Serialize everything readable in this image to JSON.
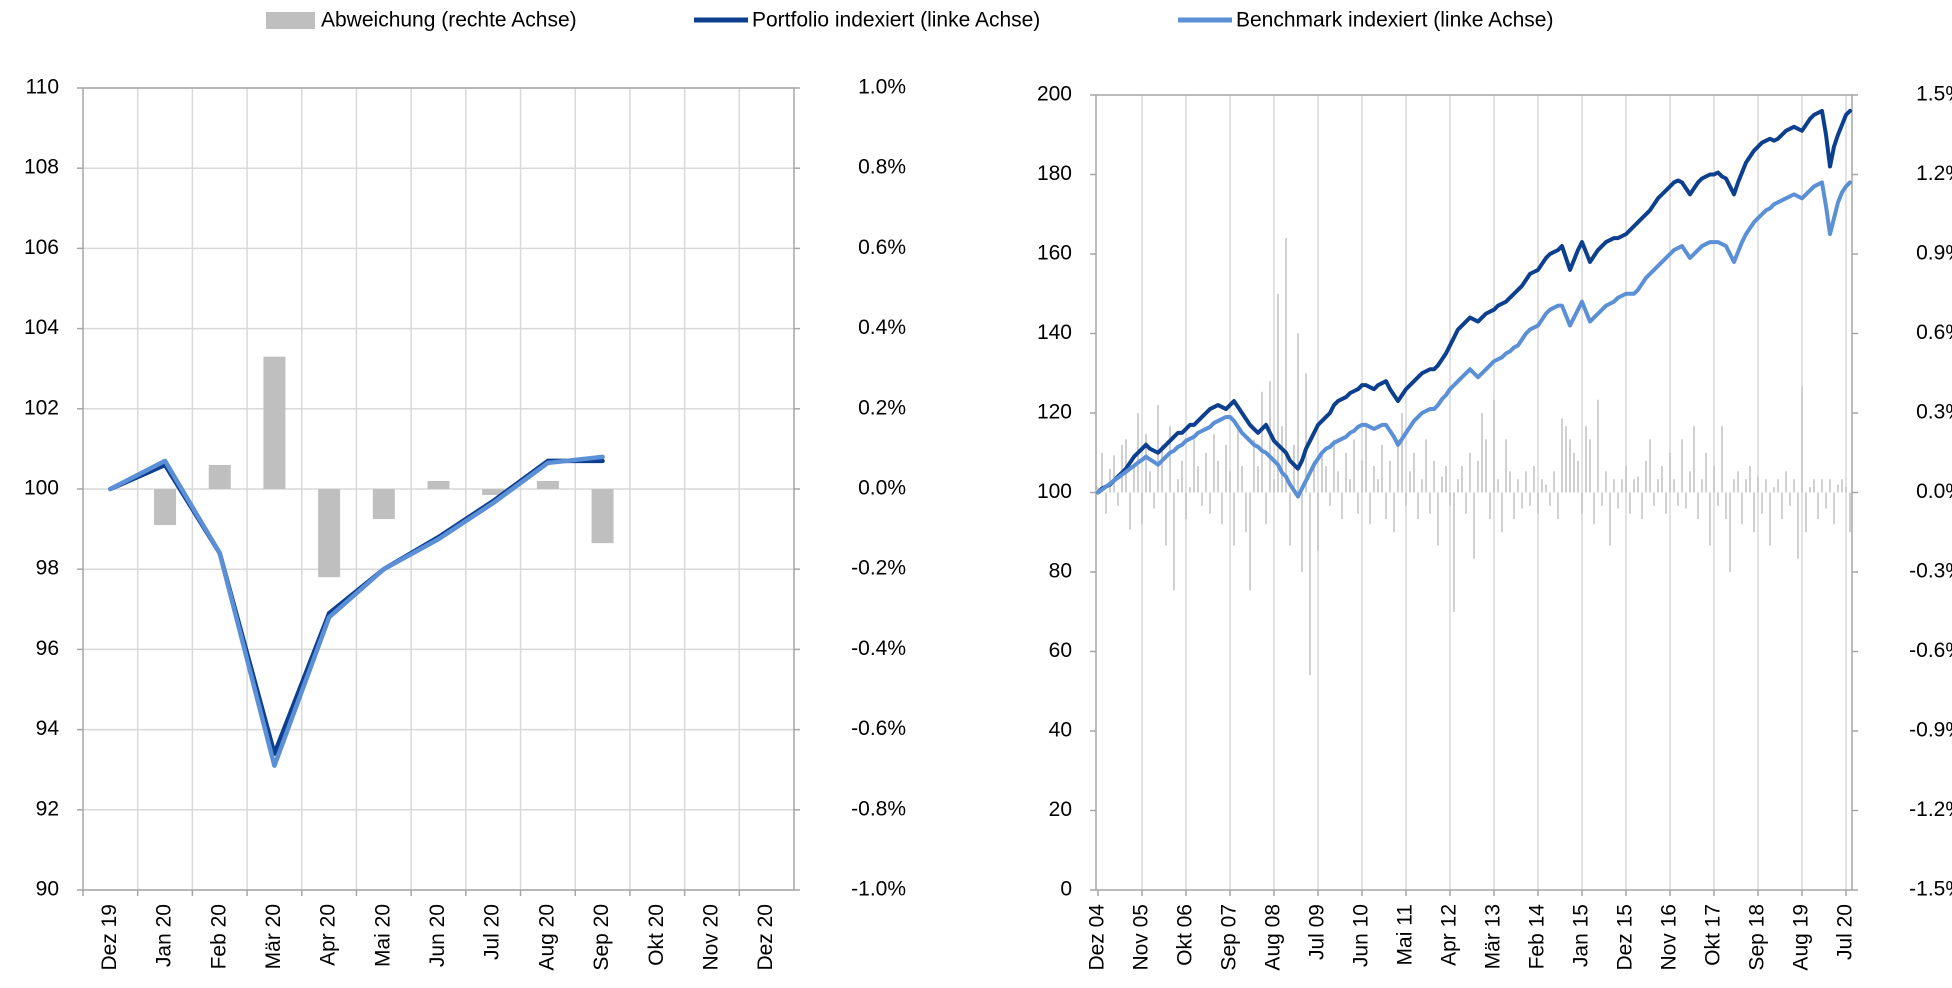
{
  "chart_data": [
    {
      "type": "line",
      "legend": "top",
      "categories": [
        "Dez 19",
        "Jan 20",
        "Feb 20",
        "Mär 20",
        "Apr 20",
        "Mai 20",
        "Jun 20",
        "Jul 20",
        "Aug 20",
        "Sep 20",
        "Okt 20",
        "Nov 20",
        "Dez 20"
      ],
      "series": [
        {
          "name": "Abweichung (rechte Achse)",
          "color": "#bfbfbf",
          "type": "bar",
          "axis": "y2",
          "values": [
            null,
            -0.09,
            0.06,
            0.33,
            -0.22,
            -0.075,
            0.02,
            -0.015,
            0.02,
            -0.135,
            null,
            null,
            null
          ]
        },
        {
          "name": "Portfolio indexiert (linke Achse)",
          "color": "#0d3f8f",
          "values": [
            100,
            100.6,
            98.4,
            93.4,
            96.9,
            98.0,
            98.8,
            99.7,
            100.7,
            100.7,
            null,
            null,
            null
          ]
        },
        {
          "name": "Benchmark indexiert (linke Achse)",
          "color": "#5b8fd6",
          "values": [
            100,
            100.7,
            98.4,
            93.1,
            96.8,
            98.0,
            98.75,
            99.65,
            100.65,
            100.8,
            null,
            null,
            null
          ]
        }
      ],
      "ylim": [
        90,
        110
      ],
      "yticks": [
        90,
        92,
        94,
        96,
        98,
        100,
        102,
        104,
        106,
        108,
        110
      ],
      "y2lim": [
        -1.0,
        1.0
      ],
      "y2ticks": [
        {
          "value": -1.0,
          "label": "-1.0%"
        },
        {
          "value": -0.8,
          "label": "-0.8%"
        },
        {
          "value": -0.6,
          "label": "-0.6%"
        },
        {
          "value": -0.4,
          "label": "-0.4%"
        },
        {
          "value": -0.2,
          "label": "-0.2%"
        },
        {
          "value": 0,
          "label": "0.0%"
        },
        {
          "value": 0.2,
          "label": "0.2%"
        },
        {
          "value": 0.4,
          "label": "0.4%"
        },
        {
          "value": 0.6,
          "label": "0.6%"
        },
        {
          "value": 0.8,
          "label": "0.8%"
        },
        {
          "value": 1.0,
          "label": "1.0%"
        }
      ],
      "grid_x": true,
      "grid_y": true
    },
    {
      "type": "line",
      "categories": [
        "Dez 04",
        null,
        null,
        null,
        null,
        null,
        null,
        null,
        null,
        null,
        null,
        "Nov 05",
        null,
        null,
        null,
        null,
        null,
        null,
        null,
        null,
        null,
        null,
        "Okt 06",
        null,
        null,
        null,
        null,
        null,
        null,
        null,
        null,
        null,
        null,
        "Sep 07",
        null,
        null,
        null,
        null,
        null,
        null,
        null,
        null,
        null,
        null,
        "Aug 08",
        null,
        null,
        null,
        null,
        null,
        null,
        null,
        null,
        null,
        null,
        "Jul 09",
        null,
        null,
        null,
        null,
        null,
        null,
        null,
        null,
        null,
        null,
        "Jun 10",
        null,
        null,
        null,
        null,
        null,
        null,
        null,
        null,
        null,
        null,
        "Mai 11",
        null,
        null,
        null,
        null,
        null,
        null,
        null,
        null,
        null,
        null,
        "Apr 12",
        null,
        null,
        null,
        null,
        null,
        null,
        null,
        null,
        null,
        null,
        "Mär 13",
        null,
        null,
        null,
        null,
        null,
        null,
        null,
        null,
        null,
        null,
        "Feb 14",
        null,
        null,
        null,
        null,
        null,
        null,
        null,
        null,
        null,
        null,
        "Jan 15",
        null,
        null,
        null,
        null,
        null,
        null,
        null,
        null,
        null,
        null,
        "Dez 15",
        null,
        null,
        null,
        null,
        null,
        null,
        null,
        null,
        null,
        null,
        "Nov 16",
        null,
        null,
        null,
        null,
        null,
        null,
        null,
        null,
        null,
        null,
        "Okt 17",
        null,
        null,
        null,
        null,
        null,
        null,
        null,
        null,
        null,
        null,
        "Sep 18",
        null,
        null,
        null,
        null,
        null,
        null,
        null,
        null,
        null,
        null,
        "Aug 19",
        null,
        null,
        null,
        null,
        null,
        null,
        null,
        null,
        null,
        null,
        "Jul 20",
        null
      ],
      "series": [
        {
          "name": "Abweichung (rechte Achse)",
          "color": "#c4c4c4",
          "type": "bar",
          "axis": "y2",
          "values": [
            0.02,
            0.15,
            -0.08,
            0.09,
            0.14,
            -0.05,
            0.18,
            0.2,
            -0.14,
            0.11,
            0.3,
            -0.12,
            0.22,
            0.08,
            -0.06,
            0.33,
            0.18,
            -0.2,
            0.25,
            -0.37,
            0.05,
            0.12,
            -0.1,
            0.02,
            0.2,
            0.1,
            -0.05,
            0.15,
            -0.08,
            0.22,
            0.12,
            -0.12,
            0.18,
            0.08,
            -0.2,
            0.25,
            0.1,
            -0.15,
            -0.37,
            0.2,
            0.1,
            0.38,
            -0.12,
            0.42,
            0.05,
            0.75,
            0.25,
            0.96,
            -0.2,
            0.18,
            0.6,
            -0.3,
            0.45,
            -0.69,
            0.12,
            -0.22,
            0.15,
            0.1,
            -0.05,
            0.2,
            0.08,
            -0.1,
            0.15,
            0.05,
            0.2,
            -0.08,
            0.12,
            0.25,
            -0.12,
            0.1,
            0.05,
            0.18,
            -0.1,
            0.12,
            -0.15,
            0.2,
            0.3,
            -0.05,
            0.08,
            0.15,
            -0.1,
            0.05,
            0.2,
            -0.08,
            0.12,
            -0.2,
            0.06,
            0.1,
            -0.05,
            -0.45,
            0.05,
            0.1,
            -0.08,
            0.15,
            -0.25,
            0.12,
            0.3,
            0.2,
            -0.1,
            0.35,
            0.05,
            -0.15,
            0.2,
            0.08,
            -0.1,
            0.05,
            -0.06,
            0.08,
            -0.05,
            0.1,
            -0.08,
            0.05,
            0.03,
            -0.05,
            0.08,
            -0.1,
            0.28,
            0.25,
            0.2,
            0.15,
            0.12,
            -0.08,
            0.25,
            0.2,
            -0.12,
            0.35,
            -0.05,
            0.08,
            -0.2,
            0.05,
            -0.06,
            0.05,
            0.1,
            -0.08,
            0.05,
            0.06,
            -0.1,
            0.12,
            0.2,
            -0.05,
            0.05,
            0.1,
            -0.08,
            0.15,
            0.05,
            -0.05,
            0.2,
            -0.06,
            0.08,
            0.25,
            -0.1,
            0.05,
            0.15,
            -0.2,
            0.1,
            -0.05,
            0.25,
            -0.1,
            -0.3,
            0.05,
            0.08,
            -0.12,
            0.05,
            0.1,
            -0.15,
            0.06,
            -0.08,
            0.05,
            -0.2,
            0.02,
            0.05,
            -0.1,
            0.08,
            -0.05,
            0.05,
            -0.25,
            0.4,
            -0.15,
            0.02,
            0.05,
            -0.1,
            0.05,
            -0.06,
            0.05,
            -0.12,
            0.03,
            0.05,
            0.02,
            -0.15
          ]
        },
        {
          "name": "Portfolio indexiert (linke Achse)",
          "color": "#0d3f8f",
          "values": [
            100,
            101,
            101.5,
            102,
            103,
            104,
            105,
            106,
            107.5,
            109,
            110,
            111,
            112,
            111,
            110.5,
            110,
            111,
            112,
            113,
            114,
            115,
            115,
            116,
            117,
            117,
            118,
            119,
            120,
            121,
            121.5,
            122,
            121.5,
            121,
            122,
            123,
            121.5,
            120,
            118.5,
            117,
            116,
            115,
            116,
            117,
            115,
            113,
            112,
            111,
            110,
            108,
            107,
            106,
            108,
            111,
            113,
            115,
            117,
            118,
            119,
            120,
            122,
            123,
            123.5,
            124,
            125,
            125.5,
            126,
            127,
            127,
            126.5,
            126,
            127,
            127.5,
            128,
            126,
            124.5,
            123,
            124.5,
            126,
            127,
            128,
            129,
            130,
            130.5,
            131,
            131,
            132,
            133.5,
            135,
            137,
            139,
            141,
            142,
            143,
            144,
            143.5,
            143,
            144,
            145,
            145.5,
            146,
            147,
            147.5,
            148,
            149,
            150,
            151,
            152,
            153.5,
            155,
            155.5,
            156,
            157.5,
            159,
            160,
            160.5,
            161,
            162,
            159,
            156,
            158.5,
            161,
            163,
            160.5,
            158,
            159.5,
            161,
            162,
            163,
            163.5,
            164,
            164,
            164.5,
            165,
            166,
            167,
            168,
            169,
            170,
            171,
            172.5,
            174,
            175,
            176,
            177,
            178,
            178.5,
            178,
            176.5,
            175,
            176.5,
            178,
            179,
            179.5,
            180,
            180,
            180.5,
            179.5,
            179,
            177,
            175,
            178,
            180.5,
            183,
            184.5,
            186,
            187,
            188,
            188.5,
            189,
            188.5,
            189,
            190,
            191,
            191.5,
            192,
            191.5,
            191,
            192.5,
            194,
            195,
            195.5,
            196,
            190,
            182,
            187,
            190,
            192.5,
            195,
            196
          ]
        },
        {
          "name": "Benchmark indexiert (linke Achse)",
          "color": "#5b8fd6",
          "values": [
            100,
            100.7,
            101.5,
            102.2,
            103,
            103.7,
            104.5,
            105.2,
            106,
            106.7,
            107.5,
            108.2,
            109,
            108.3,
            107.7,
            107,
            108,
            109,
            110,
            110.5,
            111.5,
            112,
            113,
            113.5,
            114,
            115,
            115.5,
            116,
            116.5,
            117.5,
            118,
            118.5,
            119,
            119,
            118,
            116.5,
            115,
            114,
            113,
            112,
            111.5,
            110.5,
            110,
            109,
            108,
            107,
            105,
            104,
            102,
            100.5,
            99,
            101,
            103,
            105,
            107,
            108.5,
            110,
            111,
            111.5,
            112.5,
            113,
            113.5,
            114,
            115,
            115.5,
            116.5,
            117,
            117,
            116.5,
            116,
            116.5,
            117,
            117,
            115.5,
            114,
            112,
            113.5,
            115,
            116.5,
            118,
            119,
            120,
            120.5,
            121,
            121,
            122,
            123.5,
            124.5,
            126,
            127,
            128,
            129,
            130,
            131,
            130,
            129,
            130,
            131,
            132,
            133,
            133.5,
            134,
            135,
            135.5,
            136.5,
            137,
            138.5,
            140,
            141,
            141.5,
            142,
            143.5,
            145,
            146,
            146.5,
            147,
            147,
            144.5,
            142,
            144,
            146,
            148,
            145.5,
            143,
            144,
            145,
            146,
            147,
            147.5,
            148,
            149,
            149.5,
            150,
            150,
            150,
            151,
            152.5,
            154,
            155,
            156,
            157,
            158,
            159,
            160,
            161,
            161.5,
            162,
            160.5,
            159,
            160,
            161,
            162,
            162.5,
            163,
            163,
            163,
            162.5,
            162,
            160,
            158,
            160.5,
            163,
            165,
            166.5,
            168,
            169,
            170,
            171,
            171.5,
            172.5,
            173,
            173.5,
            174,
            174.5,
            175,
            174.5,
            174,
            175,
            176,
            177,
            177.5,
            178,
            172,
            165,
            169,
            173,
            175.5,
            177,
            178
          ]
        }
      ],
      "ylim": [
        0,
        200
      ],
      "yticks": [
        0,
        20,
        40,
        60,
        80,
        100,
        120,
        140,
        160,
        180,
        200
      ],
      "y2lim": [
        -1.5,
        1.5
      ],
      "y2ticks": [
        {
          "value": -1.5,
          "label": "-1.5%"
        },
        {
          "value": -1.2,
          "label": "-1.2%"
        },
        {
          "value": -0.9,
          "label": "-0.9%"
        },
        {
          "value": -0.6,
          "label": "-0.6%"
        },
        {
          "value": -0.3,
          "label": "-0.3%"
        },
        {
          "value": 0,
          "label": "0.0%"
        },
        {
          "value": 0.3,
          "label": "0.3%"
        },
        {
          "value": 0.6,
          "label": "0.6%"
        },
        {
          "value": 0.9,
          "label": "0.9%"
        },
        {
          "value": 1.2,
          "label": "1.2%"
        },
        {
          "value": 1.5,
          "label": "1.5%"
        }
      ],
      "grid_x": true,
      "grid_y": false
    }
  ]
}
